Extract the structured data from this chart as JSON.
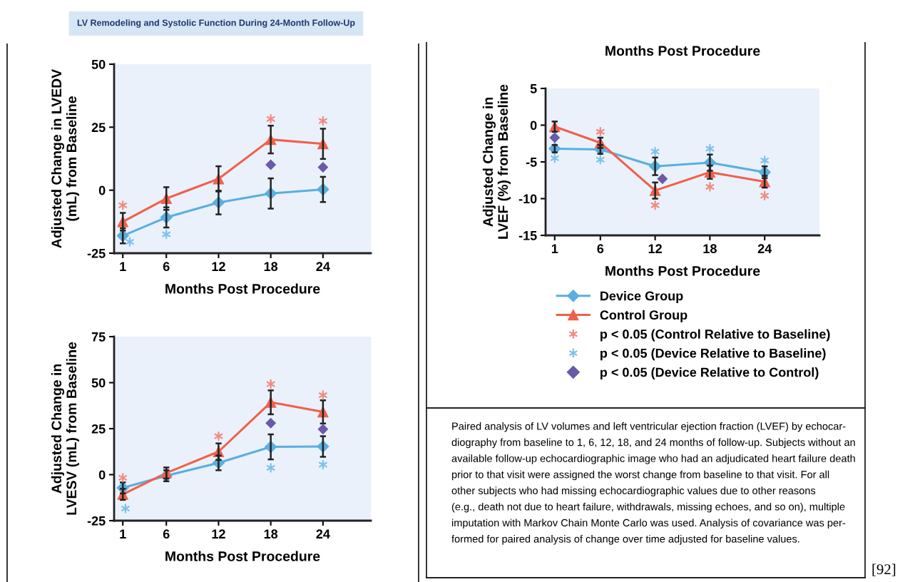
{
  "chart_data": [
    {
      "type": "line",
      "title": "LV Remodeling and Systolic Function During 24-Month Follow-Up",
      "xlabel": "Months Post Procedure",
      "ylabel": "Adjusted Change in LVEDV\n(mL) from Baseline",
      "x": [
        1,
        6,
        12,
        18,
        24
      ],
      "xlim": [
        0,
        29.5
      ],
      "xticks": [
        1,
        6,
        12,
        18,
        24
      ],
      "ylim": [
        -25,
        50
      ],
      "yticks": [
        -25,
        0,
        25,
        50
      ],
      "grid": false,
      "legend": false,
      "line_style": "solid",
      "series": [
        {
          "color": "#5aaee0",
          "marker": "diamond",
          "values": [
            -18.1,
            -10.8,
            -4.9,
            -1.3,
            0.3
          ],
          "errors": [
            3,
            4,
            4.7,
            6,
            5
          ]
        },
        {
          "color": "#f0604a",
          "marker": "triangle",
          "values": [
            -12.5,
            -3.3,
            4.5,
            20.1,
            18.4
          ],
          "errors": [
            3.5,
            4.5,
            5,
            5.5,
            6
          ]
        },
        {
          "type": "scatter",
          "color": "#f08a80",
          "marker": "cross",
          "x": [
            1,
            18,
            24
          ],
          "values": [
            -6,
            28.3,
            27.5
          ]
        },
        {
          "type": "scatter",
          "color": "#7ec0ea",
          "marker": "cross",
          "x": [
            1.8,
            6
          ],
          "values": [
            -20.5,
            -17.5
          ]
        },
        {
          "type": "scatter",
          "color": "#6a5aa8",
          "marker": "diamond",
          "x": [
            18,
            24
          ],
          "values": [
            10.1,
            9.1
          ]
        }
      ]
    },
    {
      "type": "line",
      "xlabel": "Months Post Procedure",
      "ylabel": "Adjusted Change in\nLVESV (mL) from Baseline",
      "x": [
        1,
        6,
        12,
        18,
        24
      ],
      "xlim": [
        0,
        29.5
      ],
      "xticks": [
        1,
        6,
        12,
        18,
        24
      ],
      "ylim": [
        -25,
        75
      ],
      "yticks": [
        -25,
        0,
        25,
        50,
        75
      ],
      "grid": false,
      "legend": false,
      "line_style": "solid",
      "series": [
        {
          "color": "#5aaee0",
          "marker": "diamond",
          "values": [
            -7.2,
            -0.6,
            6.4,
            15.1,
            15.3
          ],
          "errors": [
            3,
            3,
            4,
            6.8,
            5.6
          ]
        },
        {
          "color": "#f0604a",
          "marker": "triangle",
          "values": [
            -10.7,
            0.9,
            12.5,
            39.3,
            34.1
          ],
          "errors": [
            3,
            3,
            4.5,
            6.5,
            6.3
          ]
        },
        {
          "type": "scatter",
          "color": "#f08a80",
          "marker": "cross",
          "x": [
            1,
            12,
            18,
            24
          ],
          "values": [
            -1.7,
            20.9,
            49.2,
            43.2
          ]
        },
        {
          "type": "scatter",
          "color": "#7ec0ea",
          "marker": "cross",
          "x": [
            1.3,
            18,
            24
          ],
          "values": [
            -18.4,
            3.7,
            5.4
          ]
        },
        {
          "type": "scatter",
          "color": "#6a5aa8",
          "marker": "diamond",
          "x": [
            18,
            24
          ],
          "values": [
            28,
            24.7
          ]
        }
      ]
    },
    {
      "type": "line",
      "xlabel": "Months Post Procedure",
      "ylabel": "Adjusted Change in\nLVEF (%) from Baseline",
      "x": [
        1,
        6,
        12,
        18,
        24
      ],
      "xlim": [
        0,
        30
      ],
      "xticks": [
        1,
        6,
        12,
        18,
        24
      ],
      "ylim": [
        -15,
        5
      ],
      "yticks": [
        -15,
        -10,
        -5,
        0,
        5
      ],
      "grid": false,
      "legend": "bottom",
      "line_style": "solid",
      "annotations": [
        "Months Post Procedure",
        "Paired analysis of LV volumes and left ventricular ejection fraction (LVEF) by echocar-\ndiography from baseline to 1, 6, 12, 18, and 24 months of follow-up. Subjects without an\navailable follow-up echocardiographic image who had an adjudicated heart failure death\nprior to that visit were assigned the worst change from baseline to that visit. For all\nother subjects who had missing echocardiographic values due to other reasons\n(e.g., death not due to heart failure, withdrawals, missing echoes, and so on), multiple\nimputation with Markov Chain Monte Carlo was used. Analysis of covariance was per-\nformed for paired analysis of change over time adjusted for baseline values.",
        "[92]"
      ],
      "series": [
        {
          "name": "Device Group",
          "color": "#5aaee0",
          "marker": "diamond",
          "values": [
            -3.2,
            -3.3,
            -5.6,
            -5.1,
            -6.4
          ],
          "errors": [
            0.5,
            0.6,
            1.2,
            1.1,
            0.8
          ]
        },
        {
          "name": "Control Group",
          "color": "#f0604a",
          "marker": "triangle",
          "values": [
            -0.2,
            -2.4,
            -8.9,
            -6.4,
            -7.7
          ],
          "errors": [
            0.7,
            0.7,
            1.1,
            0.9,
            0.8
          ]
        },
        {
          "type": "scatter",
          "name": "p < 0.05 (Control Relative to Baseline)",
          "color": "#f08a80",
          "marker": "cross",
          "x": [
            6,
            12,
            18,
            24
          ],
          "values": [
            -0.9,
            -10.9,
            -8.4,
            -9.6
          ]
        },
        {
          "type": "scatter",
          "name": "p < 0.05 (Device Relative to Baseline)",
          "color": "#7ec0ea",
          "marker": "cross",
          "x": [
            1,
            6,
            12,
            18,
            24
          ],
          "values": [
            -4.5,
            -4.7,
            -3.6,
            -3.2,
            -4.8
          ]
        },
        {
          "type": "scatter",
          "name": "p < 0.05 (Device Relative to Control)",
          "color": "#6a5aa8",
          "marker": "diamond",
          "x": [
            1,
            12.8
          ],
          "values": [
            -1.7,
            -7.3
          ]
        }
      ]
    }
  ]
}
